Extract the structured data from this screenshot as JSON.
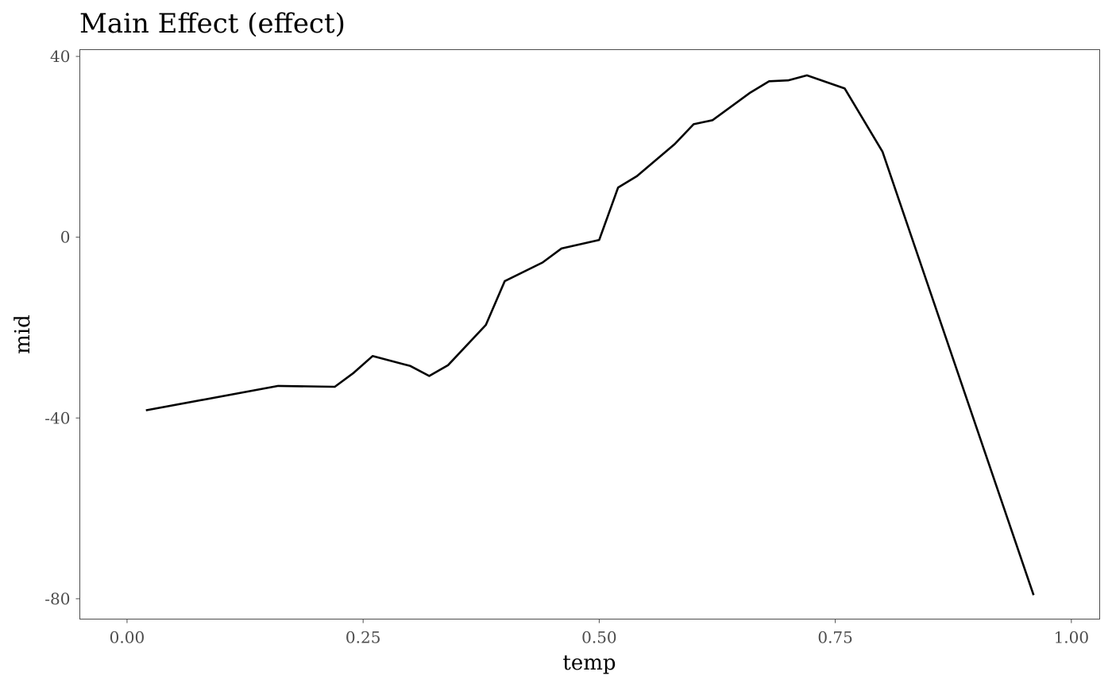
{
  "chart_data": {
    "type": "line",
    "title": "Main Effect (effect)",
    "xlabel": "temp",
    "ylabel": "mid",
    "xlim": [
      -0.05,
      1.03
    ],
    "ylim": [
      -84.5,
      41.5
    ],
    "x_ticks": [
      0.0,
      0.25,
      0.5,
      0.75,
      1.0
    ],
    "x_tick_labels": [
      "0.00",
      "0.25",
      "0.50",
      "0.75",
      "1.00"
    ],
    "y_ticks": [
      40,
      0,
      -40,
      -80
    ],
    "y_tick_labels": [
      "40",
      "0",
      "-40",
      "-80"
    ],
    "grid": false,
    "legend": "none",
    "line_color": "#000000",
    "series": [
      {
        "x": [
          0.02,
          0.16,
          0.22,
          0.24,
          0.26,
          0.3,
          0.32,
          0.34,
          0.38,
          0.4,
          0.44,
          0.46,
          0.5,
          0.52,
          0.54,
          0.58,
          0.6,
          0.62,
          0.66,
          0.68,
          0.7,
          0.72,
          0.76,
          0.8,
          0.96
        ],
        "values": [
          -38.3,
          -32.9,
          -33.1,
          -30.0,
          -26.3,
          -28.5,
          -30.7,
          -28.3,
          -19.4,
          -9.7,
          -5.6,
          -2.5,
          -0.6,
          11.0,
          13.5,
          20.6,
          25.0,
          25.9,
          32.0,
          34.5,
          34.7,
          35.8,
          32.9,
          18.9,
          -79.2
        ]
      }
    ]
  }
}
